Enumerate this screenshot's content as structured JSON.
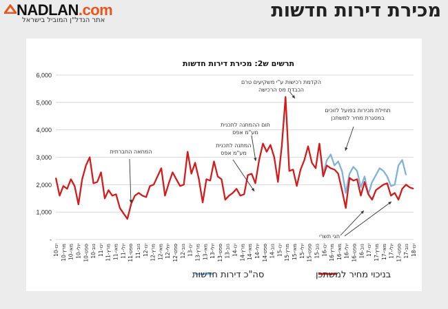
{
  "header": {
    "logo_main": "NADLAN",
    "logo_suffix": ".com",
    "logo_tagline": "אתר הנדל\"ן המוביל בישראל",
    "page_title": "מכירת דירות חדשות"
  },
  "colors": {
    "total_series": "#7fb2d9",
    "net_series": "#d41a1a",
    "brand_orange": "#e8551c"
  },
  "chart_data": {
    "type": "line",
    "title": "תרשים ש2: מכירת דירות חדשות",
    "title_superscript": "2",
    "ylim": [
      0,
      6000
    ],
    "yticks": [
      "-",
      "1,000",
      "2,000",
      "3,000",
      "4,000",
      "5,000",
      "6,000"
    ],
    "ytick_values": [
      0,
      1000,
      2000,
      3000,
      4000,
      5000,
      6000
    ],
    "grid": true,
    "x_tick_labels": [
      "ינו-10",
      "מרץ-10",
      "מאי-10",
      "יולי-10",
      "ספט-10",
      "נוב-10",
      "ינו-11",
      "מרץ-11",
      "מאי-11",
      "יולי-11",
      "ספט-11",
      "נוב-11",
      "ינו-12",
      "מרץ-12",
      "מאי-12",
      "יולי-12",
      "ספט-12",
      "נוב-12",
      "ינו-13",
      "מרץ-13",
      "מאי-13",
      "יולי-13",
      "ספט-13",
      "נוב-13",
      "ינו-14",
      "מרץ-14",
      "מאי-14",
      "יולי-14",
      "ספט-14",
      "נוב-14",
      "ינו-15",
      "מרץ-15",
      "מאי-15",
      "יולי-15",
      "ספט-15",
      "נוב-15",
      "ינו-16",
      "מרץ-16",
      "מאי-16",
      "יולי-16",
      "ספט-16",
      "נוב-16",
      "ינו-17",
      "מרץ-17",
      "מאי-17",
      "יולי-17",
      "ספט-17",
      "נוב-17",
      "ינו-18"
    ],
    "series": [
      {
        "name": "בניכוי מחיר למשתכן",
        "values": [
          2250,
          1600,
          1950,
          1850,
          2200,
          1950,
          1280,
          2200,
          2700,
          3000,
          2050,
          2100,
          2450,
          1500,
          1800,
          1600,
          1650,
          1150,
          950,
          750,
          1300,
          1600,
          1700,
          1600,
          1550,
          1950,
          2000,
          2300,
          2600,
          1600,
          2050,
          2450,
          2200,
          1950,
          2000,
          3200,
          2400,
          2800,
          2200,
          1350,
          2200,
          2150,
          2850,
          2300,
          2200,
          1450,
          1600,
          1700,
          1850,
          1600,
          1650,
          2350,
          2400,
          2050,
          2900,
          3500,
          3200,
          3450,
          3000,
          2100,
          3400,
          5200,
          2500,
          2550,
          1950,
          2550,
          2900,
          3400,
          2800,
          2600,
          3500,
          2300,
          2700,
          2600,
          2550,
          2400,
          1800,
          1150,
          2250,
          2150,
          2200,
          1600,
          2100,
          1650,
          1450,
          1800,
          1900,
          2000,
          2050,
          1600,
          1700,
          1450,
          1850,
          2000,
          1900,
          1850
        ]
      },
      {
        "name": "סה\"כ דירות חדשות",
        "start_index": 70,
        "values": [
          3500,
          2400,
          2900,
          3100,
          2700,
          2850,
          2500,
          1700,
          2400,
          2650,
          2500,
          1900,
          2300,
          1650,
          2100,
          2350,
          2600,
          2500,
          2300,
          1950,
          2000,
          2700,
          2900,
          2350
        ]
      }
    ],
    "annotations": [
      {
        "text": "המחאה החברתית",
        "lines": [
          "המחאה החברתית"
        ]
      },
      {
        "text": "המתנה לתכנית מע\"מ אפס",
        "lines": [
          "המתנה לתכנית",
          "מע\"מ אפס"
        ]
      },
      {
        "text": "תום ההמתנה לתכנית מע\"מ אפס",
        "lines": [
          "תום ההמתנה לתכנית",
          "מע\"מ אפס"
        ]
      },
      {
        "text": "הקדמת רכישות ע\"י משקיעים טרם הכבדת מס הרכישה",
        "lines": [
          "הקדמת רכישות ע\"י משקיעים טרם",
          "הכבדת מס הרכישה"
        ]
      },
      {
        "text": "תחילת מכירות בפועל לזוכים במסגרת מחיר למשתכן",
        "lines": [
          "תחילת מכירות בפועל לזוכים",
          "במסגרת מחיר למשתכן"
        ]
      },
      {
        "text": "חגי תשרי",
        "lines": [
          "חגי תשרי"
        ]
      }
    ],
    "legend_placement": "bottom"
  }
}
